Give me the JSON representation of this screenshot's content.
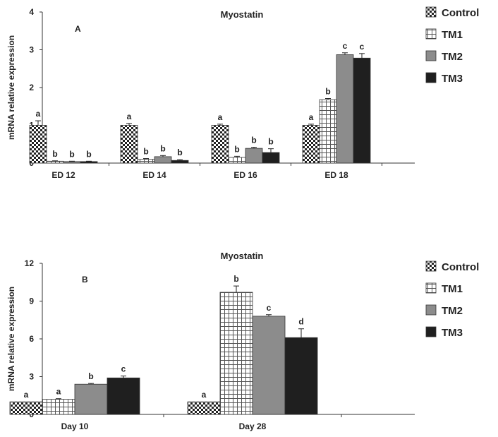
{
  "series_styles": [
    {
      "key": "control",
      "fill": "url(#pat-control)",
      "swatch": "url(#pat-control)"
    },
    {
      "key": "tm1",
      "fill": "url(#pat-tm1)",
      "swatch": "url(#pat-tm1)"
    },
    {
      "key": "tm2",
      "fill": "#8c8c8c",
      "swatch": "#8c8c8c"
    },
    {
      "key": "tm3",
      "fill": "#1f1f1f",
      "swatch": "#1f1f1f"
    }
  ],
  "chart_data": [
    {
      "type": "bar",
      "panel": "A",
      "title": "Myostatin",
      "xlabel": "",
      "ylabel": "mRNA relative expression",
      "ylim": [
        0,
        4
      ],
      "yticks": [
        0,
        1,
        2,
        3,
        4
      ],
      "categories": [
        "ED 12",
        "ED 14",
        "ED 16",
        "ED 18"
      ],
      "legend": [
        "Control",
        "TM1",
        "TM2",
        "TM3"
      ],
      "series": [
        {
          "name": "Control",
          "values": [
            1.0,
            1.0,
            1.0,
            1.0
          ],
          "errors": [
            0.12,
            0.05,
            0.03,
            0.03
          ],
          "labels": [
            "a",
            "a",
            "a",
            "a"
          ]
        },
        {
          "name": "TM1",
          "values": [
            0.05,
            0.1,
            0.15,
            1.68
          ],
          "errors": [
            0.01,
            0.02,
            0.03,
            0.03
          ],
          "labels": [
            "b",
            "b",
            "b",
            "b"
          ]
        },
        {
          "name": "TM2",
          "values": [
            0.04,
            0.17,
            0.39,
            2.87
          ],
          "errors": [
            0.01,
            0.03,
            0.03,
            0.05
          ],
          "labels": [
            "b",
            "b",
            "b",
            "c"
          ]
        },
        {
          "name": "TM3",
          "values": [
            0.04,
            0.07,
            0.28,
            2.78
          ],
          "errors": [
            0.01,
            0.02,
            0.1,
            0.12
          ],
          "labels": [
            "b",
            "b",
            "b",
            "c"
          ]
        }
      ]
    },
    {
      "type": "bar",
      "panel": "B",
      "title": "Myostatin",
      "xlabel": "",
      "ylabel": "mRNA relative expression",
      "ylim": [
        0,
        12
      ],
      "yticks": [
        0,
        3,
        6,
        9,
        12
      ],
      "categories": [
        "Day 10",
        "Day 28"
      ],
      "legend": [
        "Control",
        "TM1",
        "TM2",
        "TM3"
      ],
      "series": [
        {
          "name": "Control",
          "values": [
            1.0,
            1.0
          ],
          "errors": [
            0,
            0
          ],
          "labels": [
            "a",
            "a"
          ]
        },
        {
          "name": "TM1",
          "values": [
            1.2,
            9.7
          ],
          "errors": [
            0.05,
            0.5
          ],
          "labels": [
            "a",
            "b"
          ]
        },
        {
          "name": "TM2",
          "values": [
            2.4,
            7.8
          ],
          "errors": [
            0.06,
            0.12
          ],
          "labels": [
            "b",
            "c"
          ]
        },
        {
          "name": "TM3",
          "values": [
            2.9,
            6.1
          ],
          "errors": [
            0.15,
            0.7
          ],
          "labels": [
            "c",
            "d"
          ]
        }
      ]
    }
  ]
}
